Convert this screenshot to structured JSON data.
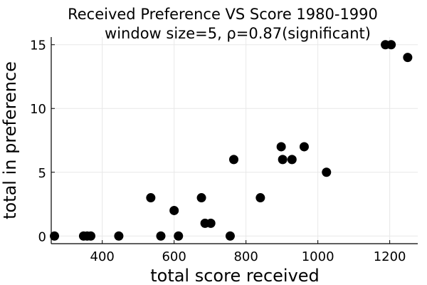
{
  "chart_data": {
    "type": "scatter",
    "title": "Received Preference VS Score 1980-1990",
    "subtitle": "window size=5, ρ=0.87(significant)",
    "xlabel": "total score received",
    "ylabel": "total in preference",
    "xlim": [
      258,
      1278
    ],
    "ylim": [
      -0.6,
      15.6
    ],
    "xticks": [
      400,
      600,
      800,
      1000,
      1200
    ],
    "yticks": [
      0,
      5,
      10,
      15
    ],
    "grid": true,
    "legend": "none",
    "marker_color": "#000000",
    "points": [
      {
        "x": 267,
        "y": 0
      },
      {
        "x": 348,
        "y": 0
      },
      {
        "x": 358,
        "y": 0
      },
      {
        "x": 368,
        "y": 0
      },
      {
        "x": 446,
        "y": 0
      },
      {
        "x": 535,
        "y": 3
      },
      {
        "x": 563,
        "y": 0
      },
      {
        "x": 600,
        "y": 2
      },
      {
        "x": 612,
        "y": 0
      },
      {
        "x": 676,
        "y": 3
      },
      {
        "x": 686,
        "y": 1
      },
      {
        "x": 702,
        "y": 1
      },
      {
        "x": 756,
        "y": 0
      },
      {
        "x": 766,
        "y": 6
      },
      {
        "x": 840,
        "y": 3
      },
      {
        "x": 898,
        "y": 7
      },
      {
        "x": 902,
        "y": 6
      },
      {
        "x": 928,
        "y": 6
      },
      {
        "x": 962,
        "y": 7
      },
      {
        "x": 1024,
        "y": 5
      },
      {
        "x": 1188,
        "y": 15
      },
      {
        "x": 1204,
        "y": 15
      },
      {
        "x": 1250,
        "y": 14
      }
    ]
  }
}
